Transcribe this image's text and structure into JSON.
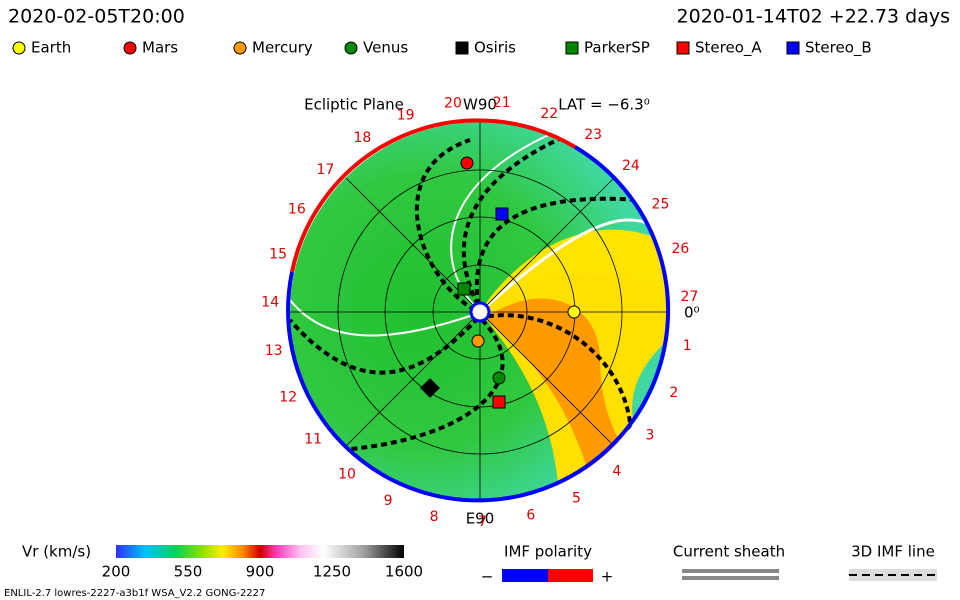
{
  "header": {
    "time": "2020-02-05T20:00",
    "run": "2020-01-14T02 +22.73 days"
  },
  "legend": [
    {
      "name": "Earth",
      "color": "#ffff00",
      "shape": "circle"
    },
    {
      "name": "Mars",
      "color": "#ff0000",
      "shape": "circle"
    },
    {
      "name": "Mercury",
      "color": "#ff9900",
      "shape": "circle"
    },
    {
      "name": "Venus",
      "color": "#008800",
      "shape": "circle"
    },
    {
      "name": "Osiris",
      "color": "#000000",
      "shape": "square"
    },
    {
      "name": "ParkerSP",
      "color": "#008800",
      "shape": "square"
    },
    {
      "name": "Stereo_A",
      "color": "#ff0000",
      "shape": "square"
    },
    {
      "name": "Stereo_B",
      "color": "#0000ff",
      "shape": "square"
    }
  ],
  "plot": {
    "title": "Ecliptic Plane",
    "top_label": "W90",
    "bottom_label": "E90",
    "lat": "LAT = −6.3⁰",
    "zero_label": "0⁰",
    "rim_labels": [
      1,
      2,
      3,
      4,
      5,
      6,
      7,
      8,
      9,
      10,
      11,
      12,
      13,
      14,
      15,
      16,
      17,
      18,
      19,
      20,
      21,
      22,
      23,
      24,
      25,
      26,
      27
    ]
  },
  "colorbar": {
    "label": "Vr (km/s)",
    "ticks": [
      200,
      550,
      900,
      1250,
      1600
    ]
  },
  "imf": {
    "label": "IMF polarity",
    "minus": "−",
    "plus": "+"
  },
  "sheath": {
    "label": "Current sheath"
  },
  "imf_line": {
    "label": "3D IMF line"
  },
  "footer": "ENLIL-2.7 lowres-2227-a3b1f WSA_V2.2 GONG-2227"
}
